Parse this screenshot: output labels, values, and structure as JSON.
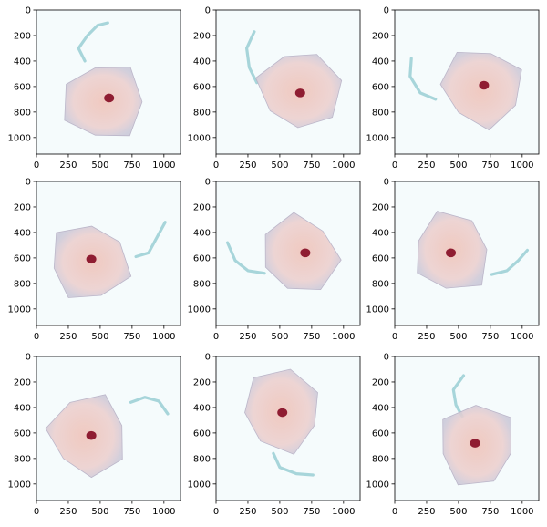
{
  "figure": {
    "rows": 3,
    "cols": 3,
    "panel_content": "micrograph-of-squamous-cell",
    "colors": {
      "background": "#f5fbfc",
      "cytoplasm_edge": "#c9c7d8",
      "cytoplasm_center": "#f0c7bd",
      "nucleus": "#8f1d32",
      "tail": "#9fd0d6"
    }
  },
  "axes": {
    "x_ticks": [
      "0",
      "250",
      "500",
      "750",
      "1000"
    ],
    "y_ticks": [
      "0",
      "200",
      "400",
      "600",
      "800",
      "1000"
    ],
    "x_tick_values": [
      0,
      250,
      500,
      750,
      1000
    ],
    "y_tick_values": [
      0,
      200,
      400,
      600,
      800,
      1000
    ],
    "xlim": [
      0,
      1130
    ],
    "ylim": [
      1130,
      0
    ]
  },
  "panels": [
    {
      "nucleus": [
        570,
        690
      ],
      "cell_center": [
        520,
        720
      ],
      "tail": [
        [
          380,
          400
        ],
        [
          330,
          300
        ],
        [
          400,
          200
        ],
        [
          480,
          120
        ],
        [
          560,
          100
        ]
      ]
    },
    {
      "nucleus": [
        660,
        650
      ],
      "cell_center": [
        650,
        620
      ],
      "tail": [
        [
          320,
          570
        ],
        [
          260,
          450
        ],
        [
          240,
          300
        ],
        [
          300,
          170
        ]
      ]
    },
    {
      "nucleus": [
        700,
        590
      ],
      "cell_center": [
        680,
        600
      ],
      "tail": [
        [
          320,
          700
        ],
        [
          200,
          650
        ],
        [
          120,
          520
        ],
        [
          130,
          380
        ]
      ]
    },
    {
      "nucleus": [
        430,
        610
      ],
      "cell_center": [
        410,
        640
      ],
      "tail": [
        [
          780,
          590
        ],
        [
          880,
          560
        ],
        [
          950,
          430
        ],
        [
          1010,
          320
        ]
      ]
    },
    {
      "nucleus": [
        700,
        560
      ],
      "cell_center": [
        650,
        580
      ],
      "tail": [
        [
          380,
          720
        ],
        [
          250,
          700
        ],
        [
          150,
          620
        ],
        [
          90,
          480
        ]
      ]
    },
    {
      "nucleus": [
        440,
        560
      ],
      "cell_center": [
        440,
        560
      ],
      "tail": [
        [
          760,
          730
        ],
        [
          880,
          700
        ],
        [
          970,
          620
        ],
        [
          1040,
          540
        ]
      ]
    },
    {
      "nucleus": [
        430,
        620
      ],
      "cell_center": [
        410,
        620
      ],
      "tail": [
        [
          740,
          360
        ],
        [
          850,
          320
        ],
        [
          960,
          350
        ],
        [
          1030,
          450
        ]
      ]
    },
    {
      "nucleus": [
        520,
        440
      ],
      "cell_center": [
        520,
        430
      ],
      "tail": [
        [
          450,
          760
        ],
        [
          500,
          870
        ],
        [
          630,
          920
        ],
        [
          760,
          930
        ]
      ]
    },
    {
      "nucleus": [
        630,
        680
      ],
      "cell_center": [
        640,
        700
      ],
      "tail": [
        [
          530,
          470
        ],
        [
          480,
          380
        ],
        [
          460,
          260
        ],
        [
          540,
          150
        ]
      ]
    }
  ]
}
